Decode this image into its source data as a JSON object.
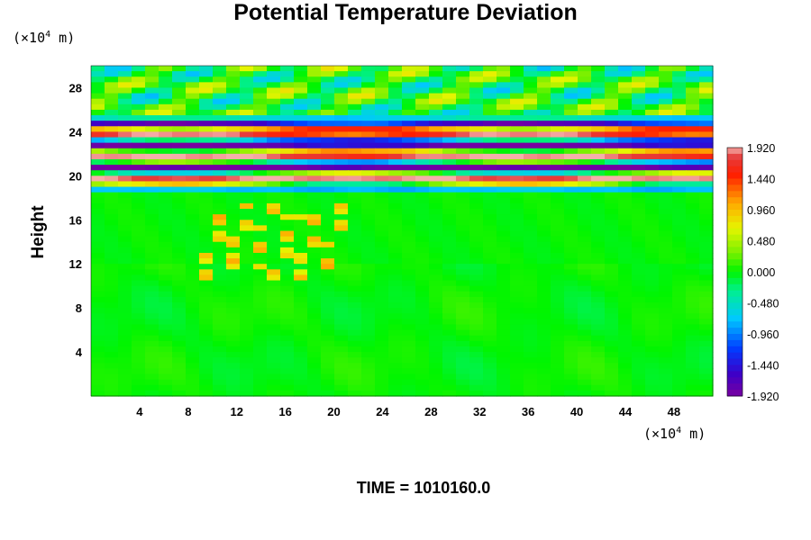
{
  "title": "Potential Temperature Deviation",
  "ylabel": "Height",
  "y_unit": {
    "prefix": "(×10",
    "exp": "4",
    "suffix": " m)"
  },
  "x_unit": {
    "prefix": "(×10",
    "exp": "4",
    "suffix": " m)"
  },
  "time_label": "TIME = 1010160.0",
  "chart_data": {
    "type": "heatmap",
    "title": "Potential Temperature Deviation",
    "xlabel": "",
    "ylabel": "Height",
    "x_unit": "×10^4 m",
    "y_unit": "×10^4 m",
    "xlim": [
      0,
      51.2
    ],
    "ylim": [
      0,
      30
    ],
    "x_ticks": [
      "4",
      "8",
      "12",
      "16",
      "20",
      "24",
      "28",
      "32",
      "36",
      "40",
      "44",
      "48"
    ],
    "x_tick_values": [
      4,
      8,
      12,
      16,
      20,
      24,
      28,
      32,
      36,
      40,
      44,
      48
    ],
    "y_ticks": [
      "4",
      "8",
      "12",
      "16",
      "20",
      "24",
      "28"
    ],
    "y_tick_values": [
      4,
      8,
      12,
      16,
      20,
      24,
      28
    ],
    "colorbar": {
      "ticks": [
        "1.920",
        "1.440",
        "0.960",
        "0.480",
        "0.000",
        "-0.480",
        "-0.960",
        "-1.440",
        "-1.920"
      ],
      "tick_values": [
        1.92,
        1.44,
        0.96,
        0.48,
        0.0,
        -0.48,
        -0.96,
        -1.44,
        -1.92
      ],
      "range": [
        -1.92,
        1.92
      ]
    },
    "features": [
      {
        "y_range": [
          19.5,
          24.5
        ],
        "description": "strong alternating positive/negative banded deviations"
      },
      {
        "y_range": [
          24.5,
          30
        ],
        "description": "weaker oscillating wave pattern"
      },
      {
        "x_range": [
          10,
          20
        ],
        "y_range": [
          11,
          17
        ],
        "description": "patchy positive deviations"
      },
      {
        "y_range": [
          0,
          12
        ],
        "description": "near-zero deviation"
      }
    ],
    "time": "1010160.0"
  }
}
